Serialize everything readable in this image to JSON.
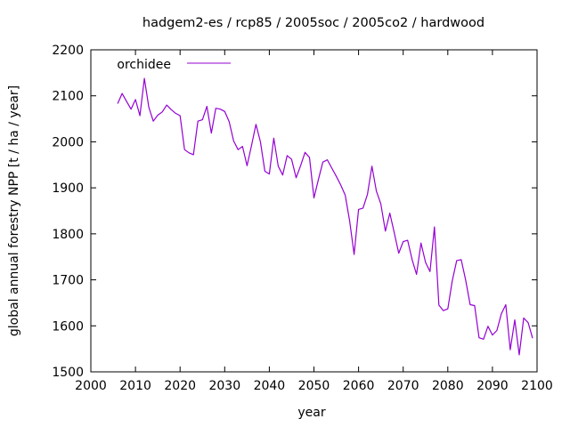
{
  "chart_data": {
    "type": "line",
    "title": "hadgem2-es / rcp85 / 2005soc / 2005co2 / hardwood",
    "xlabel": "year",
    "ylabel": "global annual forestry NPP [t / ha / year]",
    "legend_label": "orchidee",
    "legend_position": "top-left-inside",
    "grid": false,
    "xlim": [
      2000,
      2100
    ],
    "ylim": [
      1500,
      2200
    ],
    "xticks": [
      2000,
      2010,
      2020,
      2030,
      2040,
      2050,
      2060,
      2070,
      2080,
      2090,
      2100
    ],
    "yticks": [
      1500,
      1600,
      1700,
      1800,
      1900,
      2000,
      2100,
      2200
    ],
    "colors": {
      "series": "#9400D3",
      "axis": "#000000",
      "background": "#ffffff"
    },
    "series": [
      {
        "name": "orchidee",
        "color": "#9400D3",
        "points": [
          [
            2006,
            2083
          ],
          [
            2007,
            2105
          ],
          [
            2008,
            2088
          ],
          [
            2009,
            2071
          ],
          [
            2010,
            2092
          ],
          [
            2011,
            2057
          ],
          [
            2012,
            2138
          ],
          [
            2013,
            2075
          ],
          [
            2014,
            2045
          ],
          [
            2015,
            2058
          ],
          [
            2016,
            2065
          ],
          [
            2017,
            2080
          ],
          [
            2018,
            2070
          ],
          [
            2019,
            2062
          ],
          [
            2020,
            2057
          ],
          [
            2021,
            1983
          ],
          [
            2022,
            1976
          ],
          [
            2023,
            1972
          ],
          [
            2024,
            2045
          ],
          [
            2025,
            2048
          ],
          [
            2026,
            2077
          ],
          [
            2027,
            2019
          ],
          [
            2028,
            2073
          ],
          [
            2029,
            2071
          ],
          [
            2030,
            2066
          ],
          [
            2031,
            2044
          ],
          [
            2032,
            2002
          ],
          [
            2033,
            1983
          ],
          [
            2034,
            1990
          ],
          [
            2035,
            1948
          ],
          [
            2036,
            1992
          ],
          [
            2037,
            2038
          ],
          [
            2038,
            2000
          ],
          [
            2039,
            1936
          ],
          [
            2040,
            1930
          ],
          [
            2041,
            2008
          ],
          [
            2042,
            1947
          ],
          [
            2043,
            1928
          ],
          [
            2044,
            1970
          ],
          [
            2045,
            1962
          ],
          [
            2046,
            1922
          ],
          [
            2047,
            1948
          ],
          [
            2048,
            1977
          ],
          [
            2049,
            1966
          ],
          [
            2050,
            1878
          ],
          [
            2051,
            1918
          ],
          [
            2052,
            1956
          ],
          [
            2053,
            1961
          ],
          [
            2054,
            1943
          ],
          [
            2055,
            1925
          ],
          [
            2056,
            1906
          ],
          [
            2057,
            1884
          ],
          [
            2058,
            1828
          ],
          [
            2059,
            1755
          ],
          [
            2060,
            1853
          ],
          [
            2061,
            1856
          ],
          [
            2062,
            1886
          ],
          [
            2063,
            1947
          ],
          [
            2064,
            1893
          ],
          [
            2065,
            1865
          ],
          [
            2066,
            1806
          ],
          [
            2067,
            1845
          ],
          [
            2068,
            1802
          ],
          [
            2069,
            1758
          ],
          [
            2070,
            1783
          ],
          [
            2071,
            1786
          ],
          [
            2072,
            1744
          ],
          [
            2073,
            1712
          ],
          [
            2074,
            1780
          ],
          [
            2075,
            1738
          ],
          [
            2076,
            1718
          ],
          [
            2077,
            1815
          ],
          [
            2078,
            1645
          ],
          [
            2079,
            1633
          ],
          [
            2080,
            1637
          ],
          [
            2081,
            1698
          ],
          [
            2082,
            1742
          ],
          [
            2083,
            1744
          ],
          [
            2084,
            1700
          ],
          [
            2085,
            1646
          ],
          [
            2086,
            1644
          ],
          [
            2087,
            1574
          ],
          [
            2088,
            1571
          ],
          [
            2089,
            1599
          ],
          [
            2090,
            1580
          ],
          [
            2091,
            1590
          ],
          [
            2092,
            1626
          ],
          [
            2093,
            1646
          ],
          [
            2094,
            1548
          ],
          [
            2095,
            1613
          ],
          [
            2096,
            1537
          ],
          [
            2097,
            1617
          ],
          [
            2098,
            1607
          ],
          [
            2099,
            1573
          ]
        ]
      }
    ]
  }
}
